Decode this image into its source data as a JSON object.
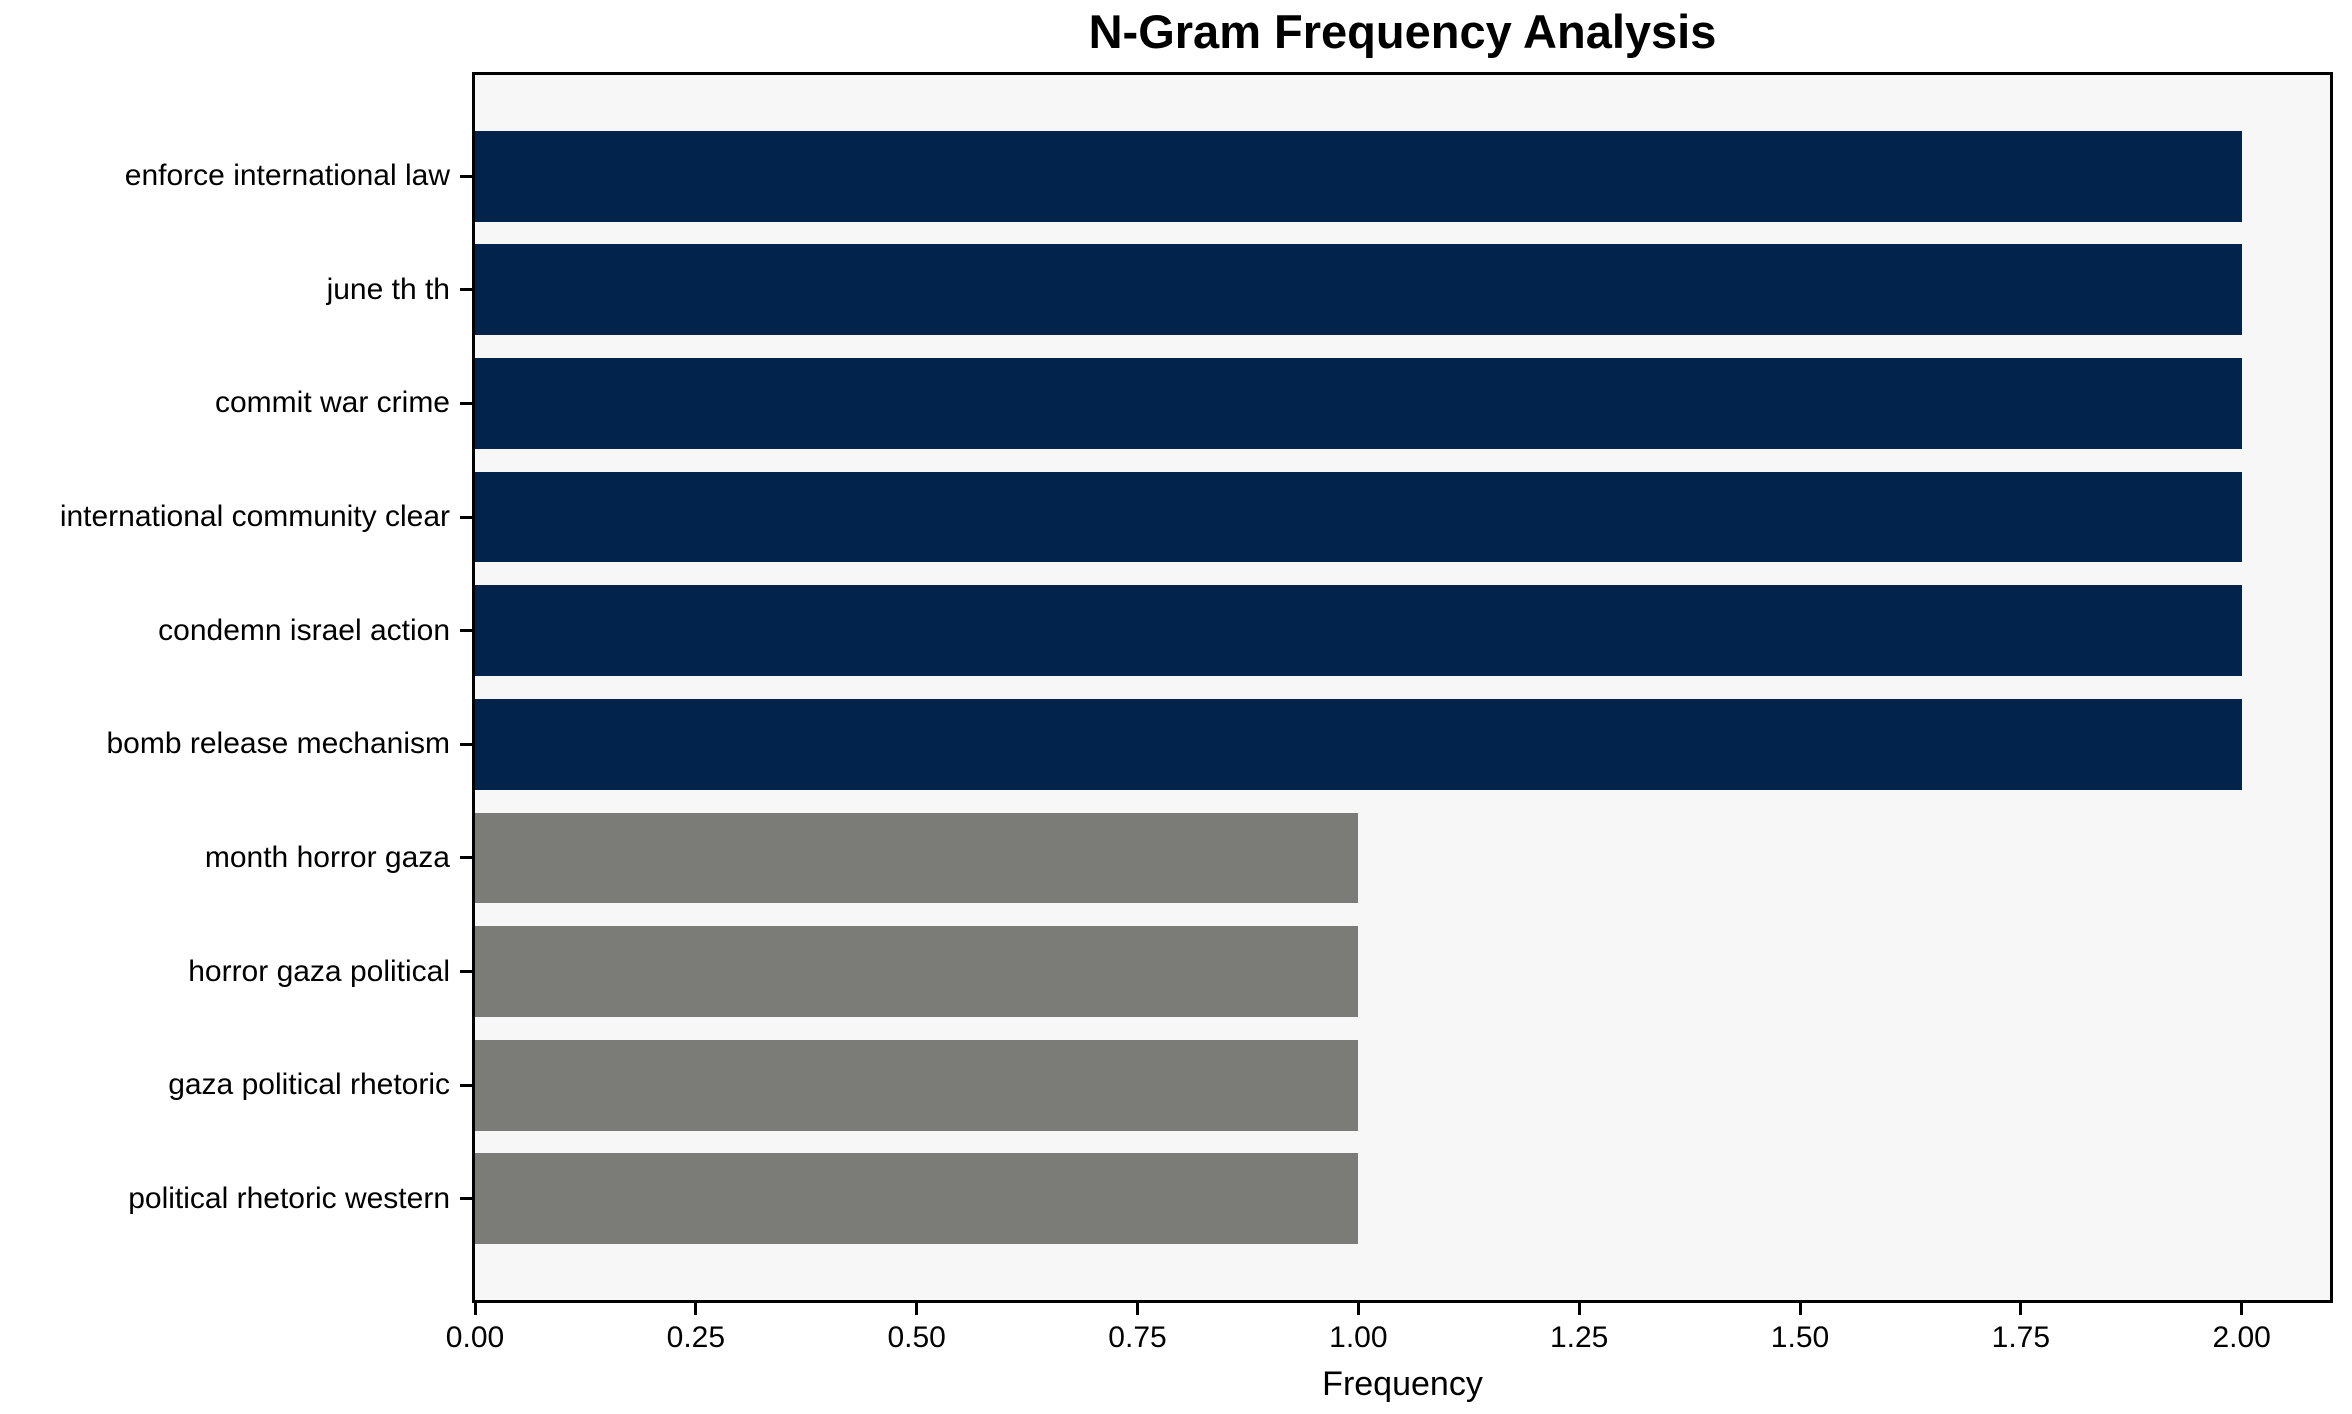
{
  "chart_data": {
    "type": "bar",
    "orientation": "horizontal",
    "title": "N-Gram Frequency Analysis",
    "xlabel": "Frequency",
    "ylabel": "",
    "categories": [
      "enforce international law",
      "june th th",
      "commit war crime",
      "international community clear",
      "condemn israel action",
      "bomb release mechanism",
      "month horror gaza",
      "horror gaza political",
      "gaza political rhetoric",
      "political rhetoric western"
    ],
    "values": [
      2,
      2,
      2,
      2,
      2,
      2,
      1,
      1,
      1,
      1
    ],
    "bar_colors": [
      "#02234c",
      "#02234c",
      "#02234c",
      "#02234c",
      "#02234c",
      "#02234c",
      "#7b7c78",
      "#7b7c78",
      "#7b7c78",
      "#7b7c78"
    ],
    "xtick_labels": [
      "0.00",
      "0.25",
      "0.50",
      "0.75",
      "1.00",
      "1.25",
      "1.50",
      "1.75",
      "2.00"
    ],
    "xtick_values": [
      0,
      0.25,
      0.5,
      0.75,
      1.0,
      1.25,
      1.5,
      1.75,
      2.0
    ],
    "xlim": [
      0,
      2.1
    ],
    "grid": false,
    "legend_position": "none",
    "colors": {
      "bar_navy": "#02234c",
      "bar_gray": "#7b7c78",
      "plot_background": "#f7f7f7",
      "figure_background": "#ffffff",
      "spine": "#000000",
      "text": "#000000"
    }
  }
}
